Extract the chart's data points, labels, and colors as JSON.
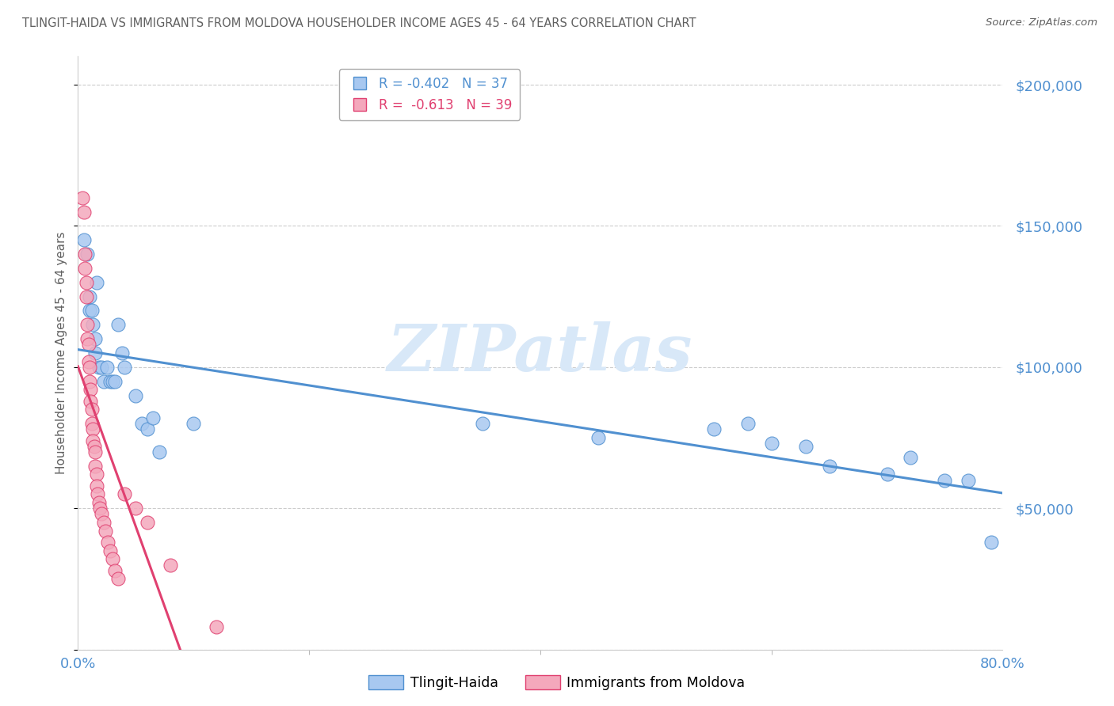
{
  "title": "TLINGIT-HAIDA VS IMMIGRANTS FROM MOLDOVA HOUSEHOLDER INCOME AGES 45 - 64 YEARS CORRELATION CHART",
  "source": "Source: ZipAtlas.com",
  "ylabel": "Householder Income Ages 45 - 64 years",
  "series1_label": "Tlingit-Haida",
  "series2_label": "Immigrants from Moldova",
  "series1_R": -0.402,
  "series1_N": 37,
  "series2_R": -0.613,
  "series2_N": 39,
  "series1_color": "#a8c8f0",
  "series2_color": "#f4a8bc",
  "trendline1_color": "#5090d0",
  "trendline2_color": "#e04070",
  "background_color": "#ffffff",
  "grid_color": "#cccccc",
  "axis_label_color": "#5090d0",
  "title_color": "#606060",
  "watermark_text": "ZIPatlas",
  "watermark_color": "#d8e8f8",
  "series1_x": [
    0.005,
    0.008,
    0.01,
    0.01,
    0.012,
    0.013,
    0.015,
    0.015,
    0.016,
    0.018,
    0.02,
    0.022,
    0.025,
    0.028,
    0.03,
    0.032,
    0.035,
    0.038,
    0.04,
    0.05,
    0.055,
    0.06,
    0.065,
    0.07,
    0.1,
    0.35,
    0.45,
    0.55,
    0.58,
    0.6,
    0.63,
    0.65,
    0.7,
    0.72,
    0.75,
    0.77,
    0.79
  ],
  "series1_y": [
    145000,
    140000,
    125000,
    120000,
    120000,
    115000,
    110000,
    105000,
    130000,
    100000,
    100000,
    95000,
    100000,
    95000,
    95000,
    95000,
    115000,
    105000,
    100000,
    90000,
    80000,
    78000,
    82000,
    70000,
    80000,
    80000,
    75000,
    78000,
    80000,
    73000,
    72000,
    65000,
    62000,
    68000,
    60000,
    60000,
    38000
  ],
  "series2_x": [
    0.004,
    0.005,
    0.006,
    0.006,
    0.007,
    0.007,
    0.008,
    0.008,
    0.009,
    0.009,
    0.01,
    0.01,
    0.011,
    0.011,
    0.012,
    0.012,
    0.013,
    0.013,
    0.014,
    0.015,
    0.015,
    0.016,
    0.016,
    0.017,
    0.018,
    0.019,
    0.02,
    0.022,
    0.024,
    0.026,
    0.028,
    0.03,
    0.032,
    0.035,
    0.04,
    0.05,
    0.06,
    0.08,
    0.12
  ],
  "series2_y": [
    160000,
    155000,
    140000,
    135000,
    130000,
    125000,
    115000,
    110000,
    108000,
    102000,
    100000,
    95000,
    92000,
    88000,
    85000,
    80000,
    78000,
    74000,
    72000,
    70000,
    65000,
    62000,
    58000,
    55000,
    52000,
    50000,
    48000,
    45000,
    42000,
    38000,
    35000,
    32000,
    28000,
    25000,
    55000,
    50000,
    45000,
    30000,
    8000
  ],
  "xlim": [
    0.0,
    0.8
  ],
  "ylim": [
    0,
    210000
  ],
  "yticks": [
    0,
    50000,
    100000,
    150000,
    200000
  ],
  "xtick_positions": [
    0.0,
    0.8
  ],
  "xtick_labels": [
    "0.0%",
    "80.0%"
  ]
}
